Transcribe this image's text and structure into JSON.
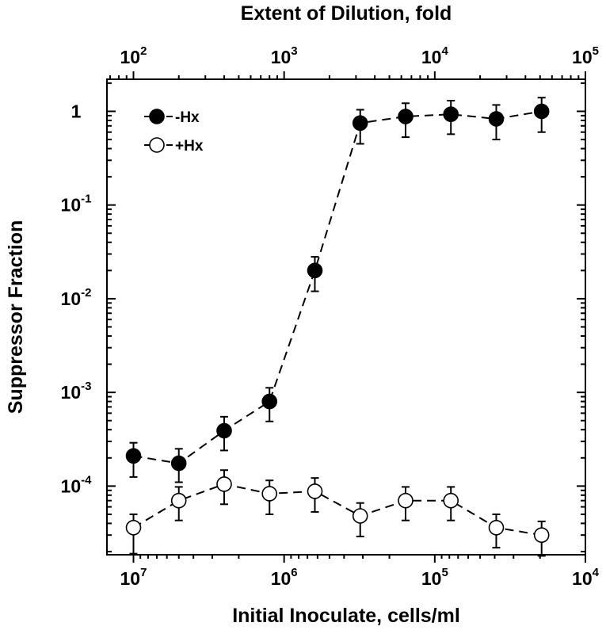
{
  "chart_data": {
    "type": "scatter",
    "top_axis_title": "Extent of Dilution, fold",
    "xlabel": "Initial Inoculate, cells/ml",
    "ylabel": "Suppressor Fraction",
    "x_scale": "log",
    "x_reversed": true,
    "xlim": [
      15000000,
      10000
    ],
    "x_ticks": [
      {
        "base": "10",
        "exp": "7",
        "value": 10000000
      },
      {
        "base": "10",
        "exp": "6",
        "value": 1000000
      },
      {
        "base": "10",
        "exp": "5",
        "value": 100000
      },
      {
        "base": "10",
        "exp": "4",
        "value": 10000
      }
    ],
    "top_axis_scale": "log",
    "top_ticks": [
      {
        "base": "10",
        "exp": "2",
        "value": 100
      },
      {
        "base": "10",
        "exp": "3",
        "value": 1000
      },
      {
        "base": "10",
        "exp": "4",
        "value": 10000
      },
      {
        "base": "10",
        "exp": "5",
        "value": 100000
      }
    ],
    "y_scale": "log",
    "ylim": [
      1.85e-05,
      2.2
    ],
    "y_ticks": [
      {
        "base": "1",
        "exp": "",
        "value": 1
      },
      {
        "base": "10",
        "exp": "-1",
        "value": 0.1
      },
      {
        "base": "10",
        "exp": "-2",
        "value": 0.01
      },
      {
        "base": "10",
        "exp": "-3",
        "value": 0.001
      },
      {
        "base": "10",
        "exp": "-4",
        "value": 0.0001
      }
    ],
    "grid": false,
    "legend_position": "top-left",
    "series": [
      {
        "name": "-Hx",
        "marker": "filled-circle",
        "x": [
          10000000,
          5000000,
          2500000,
          1250000,
          625000,
          312500,
          156250,
          78125,
          39062,
          19531
        ],
        "y": [
          0.00021,
          0.000175,
          0.00039,
          0.0008,
          0.02,
          0.75,
          0.88,
          0.93,
          0.83,
          1.0
        ],
        "err_low": [
          0.000125,
          0.00011,
          0.00024,
          0.00049,
          0.012,
          0.45,
          0.53,
          0.57,
          0.5,
          0.6
        ],
        "err_high": [
          0.00029,
          0.00025,
          0.00055,
          0.00112,
          0.028,
          1.04,
          1.22,
          1.3,
          1.17,
          1.4
        ]
      },
      {
        "name": "+Hx",
        "marker": "open-circle",
        "x": [
          10000000,
          5000000,
          2500000,
          1250000,
          625000,
          312500,
          156250,
          78125,
          39062,
          19531
        ],
        "y": [
          3.6e-05,
          7e-05,
          0.000105,
          8.3e-05,
          8.8e-05,
          4.8e-05,
          7e-05,
          7e-05,
          3.6e-05,
          3e-05
        ],
        "err_low": [
          1.9e-05,
          4.3e-05,
          6.4e-05,
          5e-05,
          5.3e-05,
          2.9e-05,
          4.3e-05,
          4.3e-05,
          2.2e-05,
          1.8e-05
        ],
        "err_high": [
          5e-05,
          9.8e-05,
          0.000148,
          0.000115,
          0.000122,
          6.6e-05,
          9.8e-05,
          9.8e-05,
          5e-05,
          4.2e-05
        ]
      }
    ]
  }
}
